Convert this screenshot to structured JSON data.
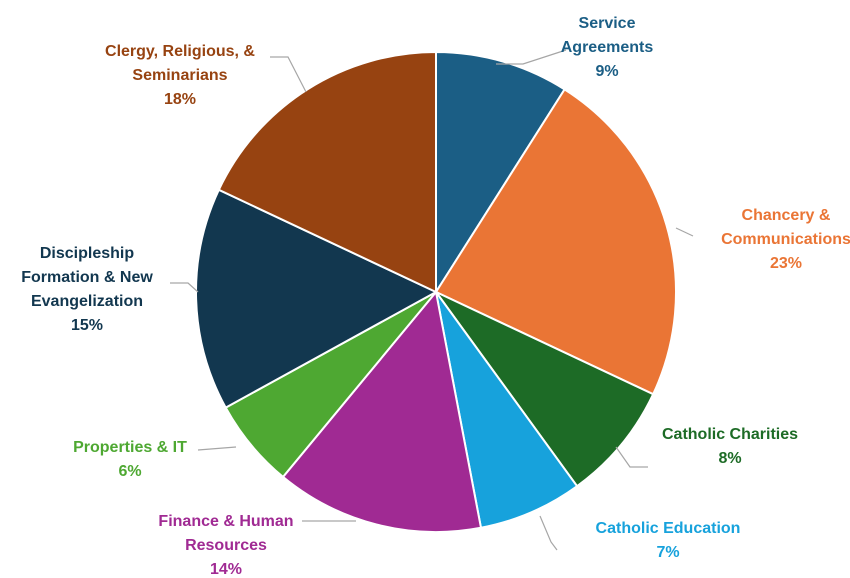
{
  "chart_data": {
    "type": "pie",
    "title": "",
    "start_angle_deg": 0,
    "direction": "clockwise",
    "slices": [
      {
        "label_lines": [
          "Service",
          "Agreements"
        ],
        "value_label": "9%",
        "value": 9,
        "color": "#1b5e85",
        "label_color": "#1b5e85"
      },
      {
        "label_lines": [
          "Chancery &",
          "Communications"
        ],
        "value_label": "23%",
        "value": 23,
        "color": "#ea7535",
        "label_color": "#ea7535"
      },
      {
        "label_lines": [
          "Catholic Charities"
        ],
        "value_label": "8%",
        "value": 8,
        "color": "#1d6b26",
        "label_color": "#1d6b26"
      },
      {
        "label_lines": [
          "Catholic Education"
        ],
        "value_label": "7%",
        "value": 7,
        "color": "#17a2dc",
        "label_color": "#17a2dc"
      },
      {
        "label_lines": [
          "Finance & Human",
          "Resources"
        ],
        "value_label": "14%",
        "value": 14,
        "color": "#a02a93",
        "label_color": "#a02a93"
      },
      {
        "label_lines": [
          "Properties & IT"
        ],
        "value_label": "6%",
        "value": 6,
        "color": "#4ea832",
        "label_color": "#4ea832"
      },
      {
        "label_lines": [
          "Discipleship",
          "Formation & New",
          "Evangelization"
        ],
        "value_label": "15%",
        "value": 15,
        "color": "#12374f",
        "label_color": "#12374f"
      },
      {
        "label_lines": [
          "Clergy, Religious, &",
          "Seminarians"
        ],
        "value_label": "18%",
        "value": 18,
        "color": "#974311",
        "label_color": "#974311"
      }
    ]
  }
}
